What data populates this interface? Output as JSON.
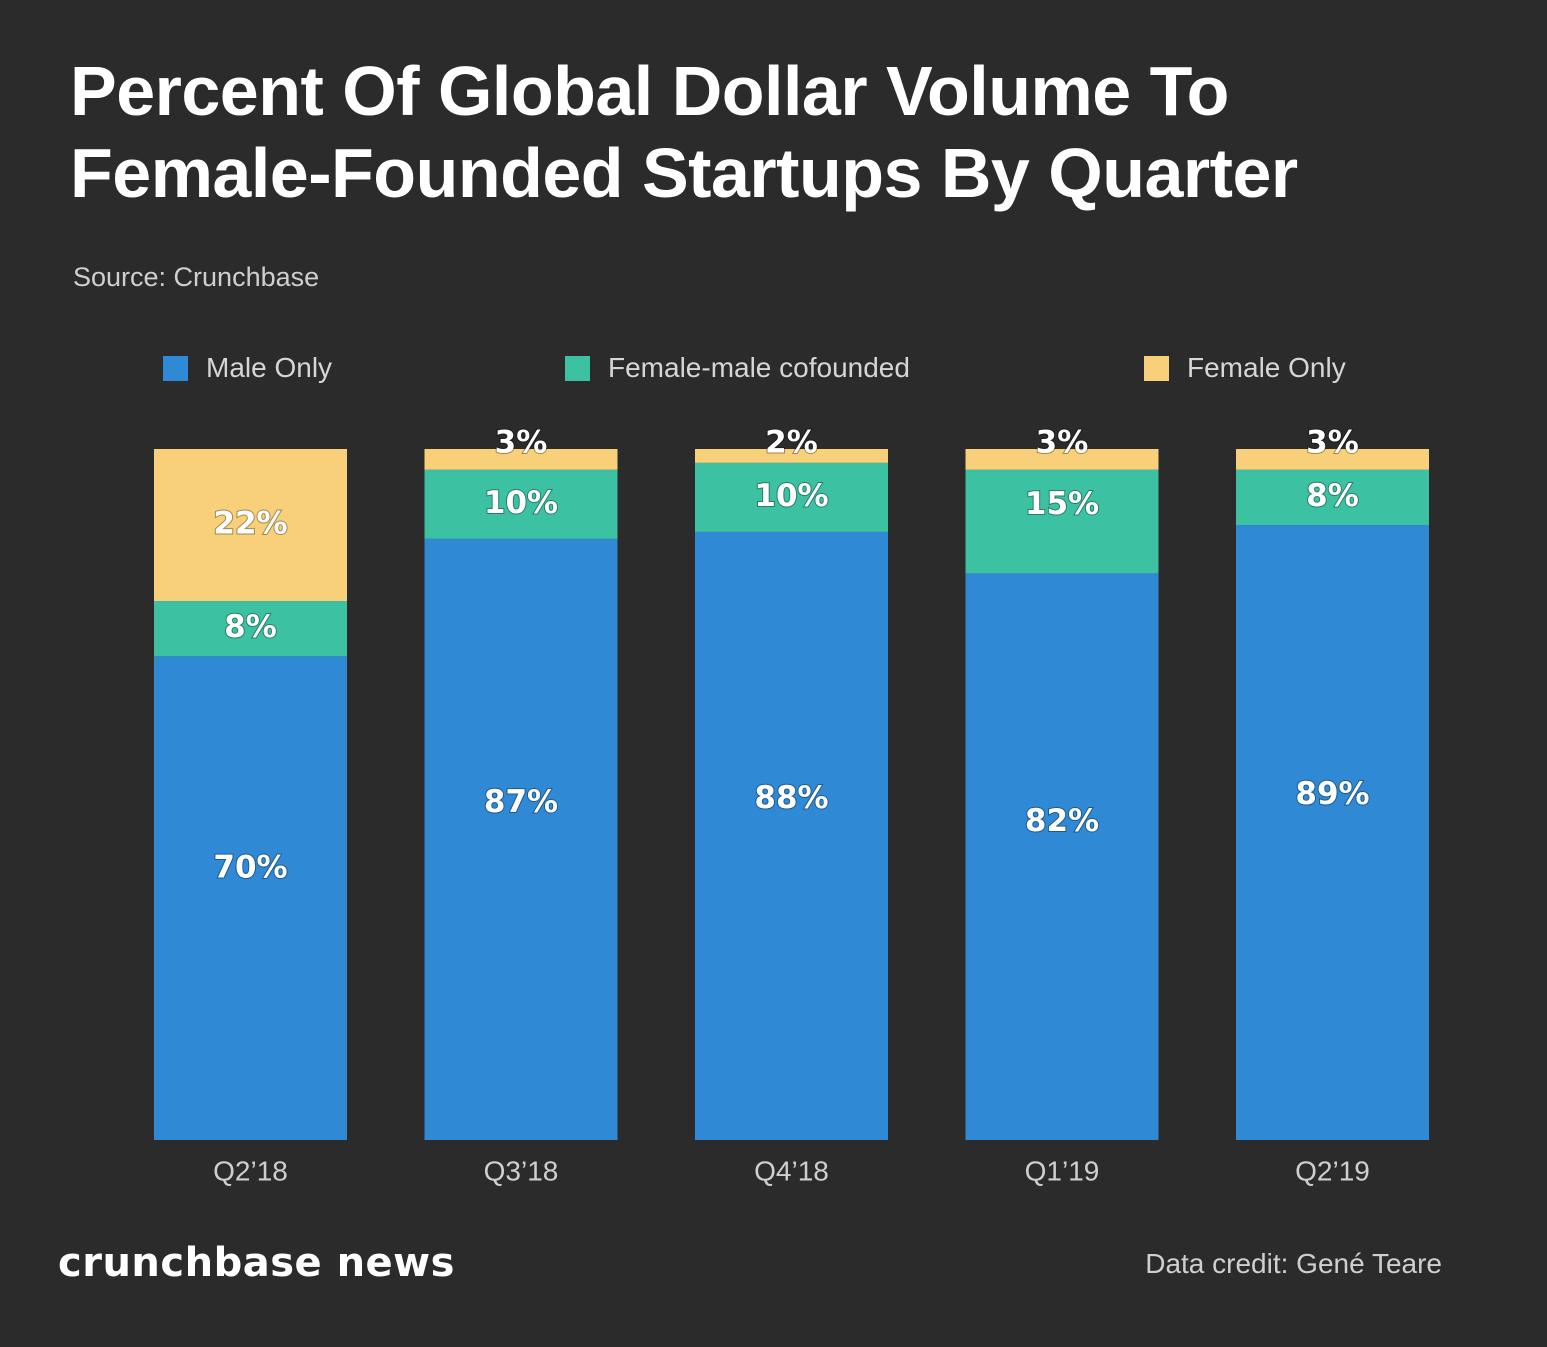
{
  "title_line1": "Percent Of Global Dollar Volume To",
  "title_line2": "Female-Founded Startups By Quarter",
  "source": "Source: Crunchbase",
  "brand": "crunchbase news",
  "credit": "Data credit: Gené Teare",
  "chart_data": {
    "type": "bar",
    "stacked": true,
    "categories": [
      "Q2’18",
      "Q3’18",
      "Q4’18",
      "Q1’19",
      "Q2’19"
    ],
    "series": [
      {
        "name": "Male Only",
        "color": "#2f89d4",
        "values": [
          70,
          87,
          88,
          82,
          89
        ],
        "labels": [
          "70%",
          "87%",
          "88%",
          "82%",
          "89%"
        ]
      },
      {
        "name": "Female-male cofounded",
        "color": "#3cc1a2",
        "values": [
          8,
          10,
          10,
          15,
          8
        ],
        "labels": [
          "8%",
          "10%",
          "10%",
          "15%",
          "8%"
        ]
      },
      {
        "name": "Female Only",
        "color": "#f8d07a",
        "values": [
          22,
          3,
          2,
          3,
          3
        ],
        "labels": [
          "22%",
          "3%",
          "2%",
          "3%",
          "3%"
        ]
      }
    ],
    "ylim": [
      0,
      100
    ],
    "legend_position": "top",
    "grid": false
  }
}
